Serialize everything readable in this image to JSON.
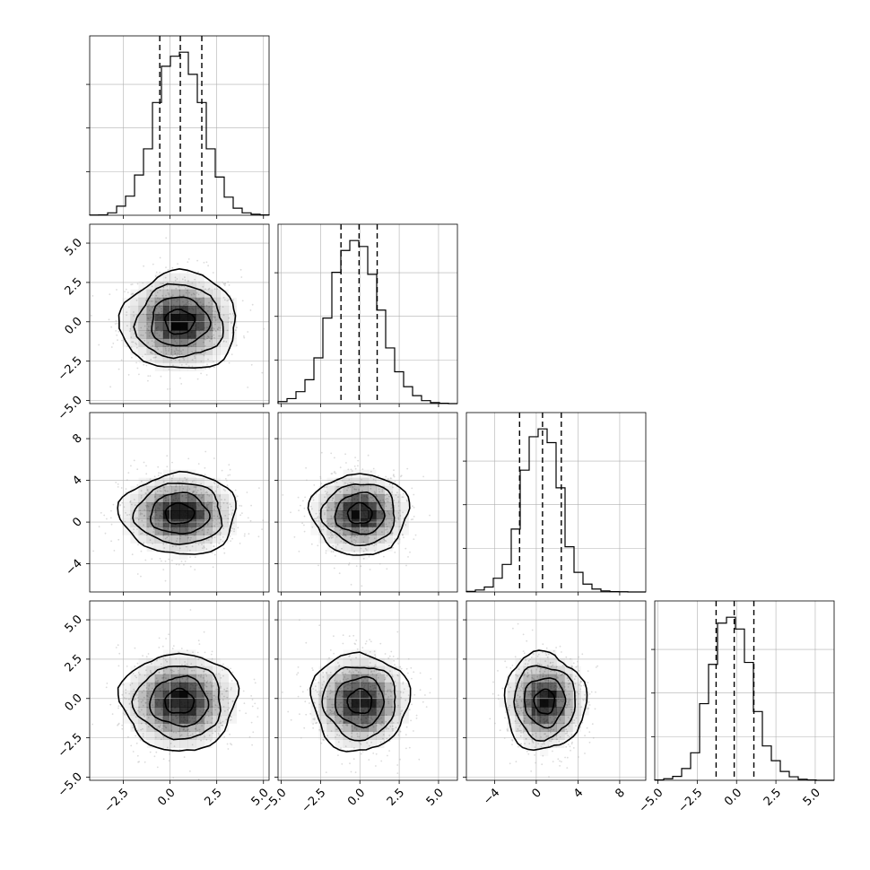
{
  "chart_data": {
    "type": "corner",
    "grid": true,
    "parameters": [
      {
        "ticks": [
          -2.5,
          0.0,
          2.5,
          5.0
        ],
        "tick_labels": [
          "−2.5",
          "0.0",
          "2.5",
          "5.0"
        ],
        "range": [
          -4.3,
          5.3
        ],
        "quantiles": [
          -0.55,
          0.55,
          1.7
        ],
        "hist": {
          "edges": [
            -4.3,
            -3.82,
            -3.34,
            -2.86,
            -2.38,
            -1.9,
            -1.42,
            -0.94,
            -0.46,
            0.02,
            0.5,
            0.98,
            1.46,
            1.94,
            2.42,
            2.9,
            3.38,
            3.86,
            4.34,
            4.82,
            5.3
          ],
          "counts": [
            1,
            2,
            12,
            45,
            95,
            200,
            330,
            560,
            740,
            790,
            810,
            700,
            560,
            330,
            190,
            90,
            35,
            12,
            5,
            2
          ]
        },
        "center": [
          0.5,
          0.0,
          0.8,
          -0.2
        ]
      },
      {
        "ticks": [
          -5.0,
          -2.5,
          0.0,
          2.5,
          5.0
        ],
        "tick_labels": [
          "−5.0",
          "−2.5",
          "0.0",
          "2.5",
          "5.0"
        ],
        "range": [
          -5.2,
          6.2
        ],
        "quantiles": [
          -1.2,
          -0.05,
          1.1
        ],
        "hist": {
          "edges": [
            -5.2,
            -4.63,
            -4.06,
            -3.49,
            -2.92,
            -2.35,
            -1.78,
            -1.21,
            -0.64,
            -0.07,
            0.5,
            1.07,
            1.64,
            2.21,
            2.78,
            3.35,
            3.92,
            4.49,
            5.06,
            5.63,
            6.2
          ],
          "counts": [
            10,
            25,
            60,
            120,
            230,
            430,
            660,
            770,
            820,
            790,
            650,
            470,
            280,
            160,
            85,
            40,
            15,
            5,
            2,
            0
          ]
        }
      },
      {
        "ticks": [
          -4,
          0,
          4,
          8
        ],
        "tick_labels": [
          "−4",
          "0",
          "4",
          "8"
        ],
        "range": [
          -6.7,
          10.5
        ],
        "quantiles": [
          -1.6,
          0.6,
          2.4
        ],
        "hist": {
          "edges": [
            -6.7,
            -5.84,
            -4.98,
            -4.12,
            -3.26,
            -2.4,
            -1.54,
            -0.68,
            0.18,
            1.04,
            1.9,
            2.76,
            3.62,
            4.48,
            5.34,
            6.2,
            7.06,
            7.92,
            8.78,
            9.64,
            10.5
          ],
          "counts": [
            3,
            10,
            25,
            70,
            140,
            320,
            620,
            790,
            830,
            760,
            530,
            230,
            100,
            40,
            15,
            5,
            2,
            1,
            0,
            0
          ]
        }
      },
      {
        "ticks": [
          -5.0,
          -2.5,
          0.0,
          2.5,
          5.0
        ],
        "tick_labels": [
          "−5.0",
          "−2.5",
          "0.0",
          "2.5",
          "5.0"
        ],
        "range": [
          -5.2,
          6.2
        ],
        "quantiles": [
          -1.3,
          -0.15,
          1.1
        ],
        "hist": {
          "edges": [
            -5.2,
            -4.63,
            -4.06,
            -3.49,
            -2.92,
            -2.35,
            -1.78,
            -1.21,
            -0.64,
            -0.07,
            0.5,
            1.07,
            1.64,
            2.21,
            2.78,
            3.35,
            3.92,
            4.49,
            5.06,
            5.63,
            6.2
          ],
          "counts": [
            2,
            8,
            20,
            60,
            140,
            390,
            590,
            800,
            830,
            770,
            600,
            350,
            175,
            100,
            45,
            18,
            5,
            2,
            0,
            0
          ]
        }
      }
    ],
    "sigma": [
      1.55,
      1.55,
      1.95,
      1.55
    ],
    "contour_levels_sigma": [
      0.5,
      1.0,
      1.5,
      2.0
    ],
    "point_color": "#bdbdbd",
    "line_color": "#000000",
    "density_color": "#000000"
  }
}
